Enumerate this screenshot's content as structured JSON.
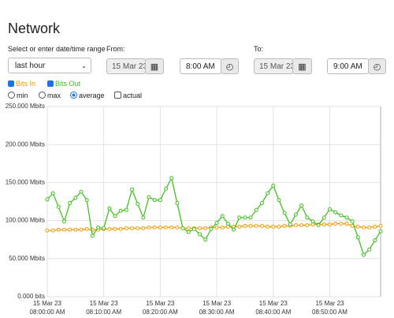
{
  "header": {
    "title": "Network"
  },
  "form": {
    "range_label": "Select or enter date/time range",
    "range_value": "last hour",
    "from_label": "From:",
    "from_date": "15 Mar 23",
    "from_time": "8:00 AM",
    "to_label": "To:",
    "to_date": "15 Mar 23",
    "to_time": "9:00 AM",
    "modes": [
      "min",
      "max",
      "average"
    ],
    "actual_label": "actual"
  },
  "chart_data": {
    "type": "line",
    "x_tick_date": "15 Mar 23",
    "x": [
      "08:00:00 AM",
      "08:01:00 AM",
      "08:02:00 AM",
      "08:03:00 AM",
      "08:04:00 AM",
      "08:05:00 AM",
      "08:06:00 AM",
      "08:07:00 AM",
      "08:08:00 AM",
      "08:09:00 AM",
      "08:10:00 AM",
      "08:11:00 AM",
      "08:12:00 AM",
      "08:13:00 AM",
      "08:14:00 AM",
      "08:15:00 AM",
      "08:16:00 AM",
      "08:17:00 AM",
      "08:18:00 AM",
      "08:19:00 AM",
      "08:20:00 AM",
      "08:21:00 AM",
      "08:22:00 AM",
      "08:23:00 AM",
      "08:24:00 AM",
      "08:25:00 AM",
      "08:26:00 AM",
      "08:27:00 AM",
      "08:28:00 AM",
      "08:29:00 AM",
      "08:30:00 AM",
      "08:31:00 AM",
      "08:32:00 AM",
      "08:33:00 AM",
      "08:34:00 AM",
      "08:35:00 AM",
      "08:36:00 AM",
      "08:37:00 AM",
      "08:38:00 AM",
      "08:39:00 AM",
      "08:40:00 AM",
      "08:41:00 AM",
      "08:42:00 AM",
      "08:43:00 AM",
      "08:44:00 AM",
      "08:45:00 AM",
      "08:46:00 AM",
      "08:47:00 AM",
      "08:48:00 AM",
      "08:49:00 AM",
      "08:50:00 AM",
      "08:51:00 AM",
      "08:52:00 AM",
      "08:53:00 AM",
      "08:54:00 AM",
      "08:55:00 AM",
      "08:56:00 AM",
      "08:57:00 AM",
      "08:58:00 AM",
      "08:59:00 AM"
    ],
    "series": [
      {
        "name": "Bits In",
        "color": "#f29b00",
        "values": [
          87,
          87,
          88,
          88,
          88,
          88,
          88,
          89,
          88,
          88,
          89,
          89,
          89,
          89,
          90,
          90,
          90,
          90,
          91,
          91,
          91,
          91,
          91,
          91,
          90,
          90,
          90,
          90,
          90,
          91,
          91,
          91,
          92,
          92,
          92,
          93,
          93,
          93,
          93,
          92,
          92,
          92,
          93,
          93,
          94,
          94,
          94,
          95,
          95,
          95,
          95,
          96,
          96,
          96,
          93,
          92,
          91,
          91,
          92,
          93
        ]
      },
      {
        "name": "Bits Out",
        "color": "#3fc21f",
        "values": [
          128,
          136,
          118,
          99,
          123,
          130,
          138,
          127,
          80,
          91,
          90,
          116,
          106,
          113,
          114,
          141,
          122,
          104,
          131,
          127,
          127,
          142,
          156,
          123,
          90,
          85,
          89,
          82,
          75,
          89,
          97,
          106,
          96,
          88,
          104,
          104,
          104,
          114,
          123,
          136,
          146,
          127,
          110,
          95,
          108,
          120,
          104,
          99,
          94,
          104,
          115,
          111,
          107,
          104,
          99,
          78,
          55,
          62,
          74,
          86
        ]
      }
    ],
    "xlim": [
      "08:00:00 AM",
      "08:59:00 AM"
    ],
    "xticks": [
      "08:00:00 AM",
      "08:10:00 AM",
      "08:20:00 AM",
      "08:30:00 AM",
      "08:40:00 AM",
      "08:50:00 AM"
    ],
    "ylim": [
      0,
      250
    ],
    "yticks": [
      {
        "value": 0,
        "label": "0.000 bits"
      },
      {
        "value": 50,
        "label": "50.000 Mbits"
      },
      {
        "value": 100,
        "label": "100.000 Mbits"
      },
      {
        "value": 150,
        "label": "150.000 Mbits"
      },
      {
        "value": 200,
        "label": "200.000 Mbits"
      },
      {
        "value": 250,
        "label": "250.000 Mbits"
      }
    ],
    "grid": true
  }
}
